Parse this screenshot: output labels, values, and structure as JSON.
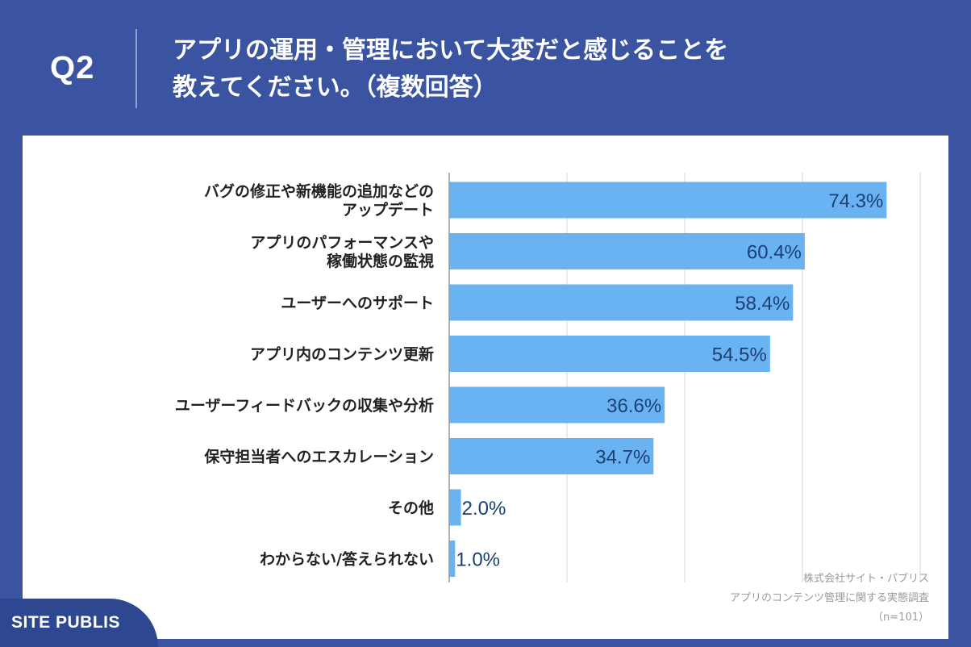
{
  "header": {
    "question_number": "Q2",
    "title_line1": "アプリの運用・管理において大変だと感じることを",
    "title_line2": "教えてください。（複数回答）"
  },
  "chart_data": {
    "type": "bar",
    "orientation": "horizontal",
    "categories": [
      [
        "バグの修正や新機能の追加などの",
        "アップデート"
      ],
      [
        "アプリのパフォーマンスや",
        "稼働状態の監視"
      ],
      [
        "ユーザーへのサポート"
      ],
      [
        "アプリ内のコンテンツ更新"
      ],
      [
        "ユーザーフィードバックの収集や分析"
      ],
      [
        "保守担当者へのエスカレーション"
      ],
      [
        "その他"
      ],
      [
        "わからない/答えられない"
      ]
    ],
    "values": [
      74.3,
      60.4,
      58.4,
      54.5,
      36.6,
      34.7,
      2.0,
      1.0
    ],
    "value_labels": [
      "74.3%",
      "60.4%",
      "58.4%",
      "54.5%",
      "36.6%",
      "34.7%",
      "2.0%",
      "1.0%"
    ],
    "xlim": [
      0,
      80
    ],
    "grid": true,
    "bar_color": "#6ab3f2"
  },
  "footer": {
    "source_company": "株式会社サイト・パブリス",
    "source_survey": "アプリのコンテンツ管理に関する実態調査",
    "sample_size": "（n=101）",
    "logo": "SITE PUBLIS"
  },
  "colors": {
    "background": "#3a54a2",
    "card": "#ffffff",
    "bar": "#6ab3f2",
    "value_text": "#1c3f76"
  }
}
